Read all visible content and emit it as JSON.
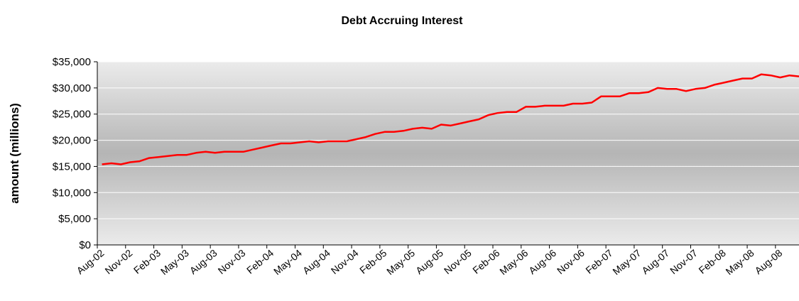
{
  "chart_data": {
    "type": "line",
    "title": "Debt Accruing Interest",
    "xlabel": "",
    "ylabel": "amount (millions)",
    "ylim": [
      0,
      35000
    ],
    "y_ticks": [
      "$0",
      "$5,000",
      "$10,000",
      "$15,000",
      "$20,000",
      "$25,000",
      "$30,000",
      "$35,000"
    ],
    "x_tick_labels": [
      "Aug-02",
      "Nov-02",
      "Feb-03",
      "May-03",
      "Aug-03",
      "Nov-03",
      "Feb-04",
      "May-04",
      "Aug-04",
      "Nov-04",
      "Feb-05",
      "May-05",
      "Aug-05",
      "Nov-05",
      "Feb-06",
      "May-06",
      "Aug-06",
      "Nov-06",
      "Feb-07",
      "May-07",
      "Aug-07",
      "Nov-07",
      "Feb-08",
      "May-08",
      "Aug-08"
    ],
    "grid": true,
    "legend": "none",
    "line_color": "#ff0000",
    "x": [
      "Aug-02",
      "Sep-02",
      "Oct-02",
      "Nov-02",
      "Dec-02",
      "Jan-03",
      "Feb-03",
      "Mar-03",
      "Apr-03",
      "May-03",
      "Jun-03",
      "Jul-03",
      "Aug-03",
      "Sep-03",
      "Oct-03",
      "Nov-03",
      "Dec-03",
      "Jan-04",
      "Feb-04",
      "Mar-04",
      "Apr-04",
      "May-04",
      "Jun-04",
      "Jul-04",
      "Aug-04",
      "Sep-04",
      "Oct-04",
      "Nov-04",
      "Dec-04",
      "Jan-05",
      "Feb-05",
      "Mar-05",
      "Apr-05",
      "May-05",
      "Jun-05",
      "Jul-05",
      "Aug-05",
      "Sep-05",
      "Oct-05",
      "Nov-05",
      "Dec-05",
      "Jan-06",
      "Feb-06",
      "Mar-06",
      "Apr-06",
      "May-06",
      "Jun-06",
      "Jul-06",
      "Aug-06",
      "Sep-06",
      "Oct-06",
      "Nov-06",
      "Dec-06",
      "Jan-07",
      "Feb-07",
      "Mar-07",
      "Apr-07",
      "May-07",
      "Jun-07",
      "Jul-07",
      "Aug-07",
      "Sep-07",
      "Oct-07",
      "Nov-07",
      "Dec-07",
      "Jan-08",
      "Feb-08",
      "Mar-08",
      "Apr-08",
      "May-08",
      "Jun-08",
      "Jul-08",
      "Aug-08",
      "Sep-08",
      "Oct-08"
    ],
    "series": [
      {
        "values": [
          15400,
          15600,
          15400,
          15800,
          16000,
          16600,
          16800,
          17000,
          17200,
          17200,
          17600,
          17800,
          17600,
          17800,
          17800,
          17800,
          18200,
          18600,
          19000,
          19400,
          19400,
          19600,
          19800,
          19600,
          19800,
          19800,
          19800,
          20200,
          20600,
          21200,
          21600,
          21600,
          21800,
          22200,
          22400,
          22200,
          23000,
          22800,
          23200,
          23600,
          24000,
          24800,
          25200,
          25400,
          25400,
          26400,
          26400,
          26600,
          26600,
          26600,
          27000,
          27000,
          27200,
          28400,
          28400,
          28400,
          29000,
          29000,
          29200,
          30000,
          29800,
          29800,
          29400,
          29800,
          30000,
          30600,
          31000,
          31400,
          31800,
          31800,
          32600,
          32400,
          32000,
          32400,
          32200
        ]
      }
    ]
  }
}
